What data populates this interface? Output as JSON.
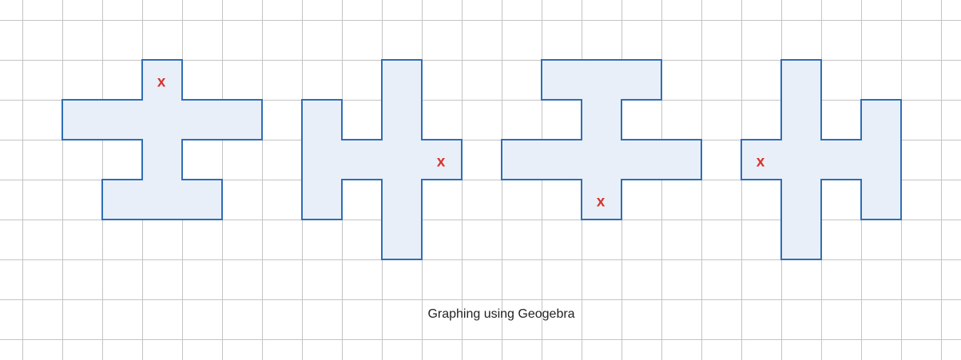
{
  "caption": "Graphing using Geogebra",
  "colors": {
    "grid": "#c4c4c4",
    "shape_fill": "#e8eff8",
    "shape_stroke": "#2f6db5",
    "mark": "#d9342b",
    "background": "#ffffff"
  },
  "grid": {
    "visible": true
  },
  "figures": [
    {
      "name": "figure-1",
      "outline": [
        [
          3,
          1
        ],
        [
          4,
          1
        ],
        [
          4,
          2
        ],
        [
          6,
          2
        ],
        [
          6,
          3
        ],
        [
          4,
          3
        ],
        [
          4,
          4
        ],
        [
          5,
          4
        ],
        [
          5,
          5
        ],
        [
          2,
          5
        ],
        [
          2,
          4
        ],
        [
          3,
          4
        ],
        [
          3,
          3
        ],
        [
          1,
          3
        ],
        [
          1,
          2
        ],
        [
          3,
          2
        ]
      ],
      "mark": {
        "label": "x",
        "cell": [
          3,
          1
        ]
      }
    },
    {
      "name": "figure-2",
      "outline": [
        [
          9,
          1
        ],
        [
          10,
          1
        ],
        [
          10,
          3
        ],
        [
          11,
          3
        ],
        [
          11,
          4
        ],
        [
          10,
          4
        ],
        [
          10,
          6
        ],
        [
          9,
          6
        ],
        [
          9,
          4
        ],
        [
          8,
          4
        ],
        [
          8,
          5
        ],
        [
          7,
          5
        ],
        [
          7,
          2
        ],
        [
          8,
          2
        ],
        [
          8,
          3
        ],
        [
          9,
          3
        ]
      ],
      "mark": {
        "label": "x",
        "cell": [
          10,
          3
        ]
      }
    },
    {
      "name": "figure-3",
      "outline": [
        [
          13,
          1
        ],
        [
          16,
          1
        ],
        [
          16,
          2
        ],
        [
          15,
          2
        ],
        [
          15,
          3
        ],
        [
          17,
          3
        ],
        [
          17,
          4
        ],
        [
          15,
          4
        ],
        [
          15,
          5
        ],
        [
          14,
          5
        ],
        [
          14,
          4
        ],
        [
          12,
          4
        ],
        [
          12,
          3
        ],
        [
          14,
          3
        ],
        [
          14,
          2
        ],
        [
          13,
          2
        ]
      ],
      "mark": {
        "label": "x",
        "cell": [
          14,
          4
        ]
      }
    },
    {
      "name": "figure-4",
      "outline": [
        [
          19,
          1
        ],
        [
          20,
          1
        ],
        [
          20,
          3
        ],
        [
          21,
          3
        ],
        [
          21,
          2
        ],
        [
          22,
          2
        ],
        [
          22,
          5
        ],
        [
          21,
          5
        ],
        [
          21,
          4
        ],
        [
          20,
          4
        ],
        [
          20,
          6
        ],
        [
          19,
          6
        ],
        [
          19,
          4
        ],
        [
          18,
          4
        ],
        [
          18,
          3
        ],
        [
          19,
          3
        ]
      ],
      "mark": {
        "label": "x",
        "cell": [
          18,
          3
        ]
      }
    }
  ]
}
